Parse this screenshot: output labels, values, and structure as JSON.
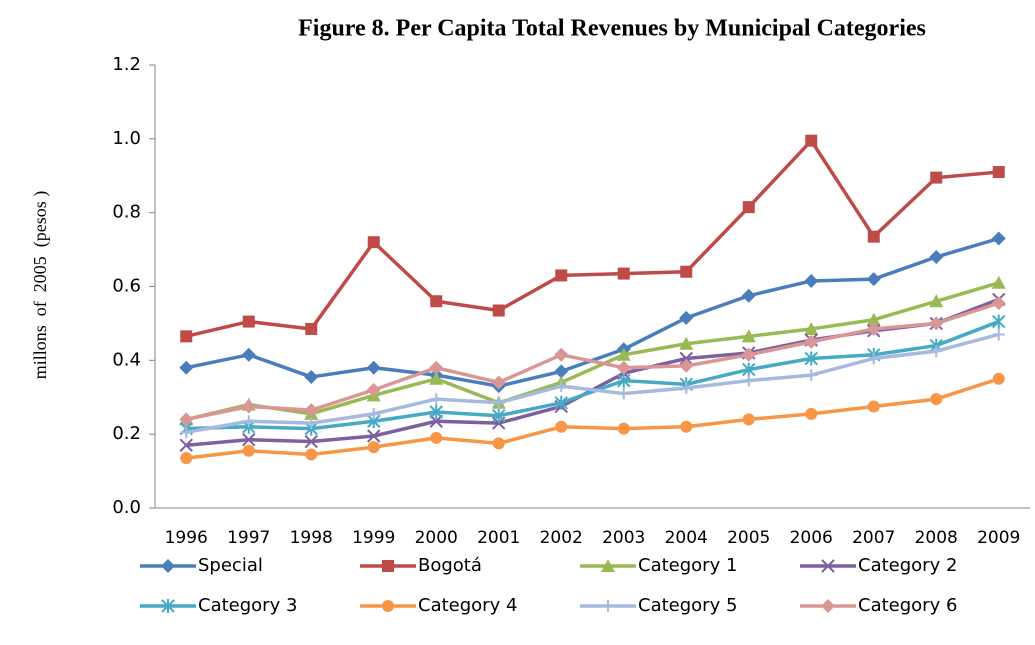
{
  "chart_data": {
    "type": "line",
    "title": "Figure 8. Per Capita Total Revenues by Municipal Categories",
    "y_label": "millons  of  2005  (pesos )",
    "categories": [
      "1996",
      "1997",
      "1998",
      "1999",
      "2000",
      "2001",
      "2002",
      "2003",
      "2004",
      "2005",
      "2006",
      "2007",
      "2008",
      "2009"
    ],
    "ylim": [
      0,
      1.2
    ],
    "yticks": [
      {
        "value": 0,
        "label": "0.0"
      },
      0.2,
      0.4,
      0.6,
      0.8,
      {
        "value": 1,
        "label": "1.0"
      },
      1.2
    ],
    "legend": "bottom",
    "series": [
      {
        "name": "Special",
        "color": "#4a7ebb",
        "marker": "diamond",
        "values": [
          0.38,
          0.415,
          0.355,
          0.38,
          0.36,
          0.33,
          0.37,
          0.43,
          0.515,
          0.575,
          0.615,
          0.62,
          0.68,
          0.73
        ]
      },
      {
        "name": "Bogotá",
        "color": "#be4b48",
        "marker": "square",
        "values": [
          0.465,
          0.505,
          0.485,
          0.72,
          0.56,
          0.535,
          0.63,
          0.635,
          0.64,
          0.815,
          0.995,
          0.735,
          0.895,
          0.91
        ]
      },
      {
        "name": "Category 1",
        "color": "#98b954",
        "marker": "triangle",
        "values": [
          0.24,
          0.28,
          0.255,
          0.305,
          0.35,
          0.285,
          0.34,
          0.415,
          0.445,
          0.465,
          0.485,
          0.51,
          0.56,
          0.61
        ]
      },
      {
        "name": "Category 2",
        "color": "#7d60a0",
        "marker": "x",
        "values": [
          0.17,
          0.185,
          0.18,
          0.195,
          0.235,
          0.23,
          0.275,
          0.365,
          0.405,
          0.42,
          0.455,
          0.48,
          0.5,
          0.565
        ]
      },
      {
        "name": "Category 3",
        "color": "#46aac5",
        "marker": "asterisk",
        "values": [
          0.215,
          0.22,
          0.215,
          0.235,
          0.26,
          0.25,
          0.285,
          0.345,
          0.335,
          0.375,
          0.405,
          0.415,
          0.44,
          0.505
        ]
      },
      {
        "name": "Category 4",
        "color": "#f79646",
        "marker": "circle",
        "values": [
          0.135,
          0.155,
          0.145,
          0.165,
          0.19,
          0.175,
          0.22,
          0.215,
          0.22,
          0.24,
          0.255,
          0.275,
          0.295,
          0.35
        ]
      },
      {
        "name": "Category 5",
        "color": "#a6b9e0",
        "marker": "plus",
        "values": [
          0.205,
          0.235,
          0.23,
          0.255,
          0.295,
          0.285,
          0.33,
          0.31,
          0.325,
          0.345,
          0.36,
          0.405,
          0.425,
          0.47
        ]
      },
      {
        "name": "Category 6",
        "color": "#d99694",
        "marker": "diamond",
        "values": [
          0.24,
          0.275,
          0.265,
          0.32,
          0.38,
          0.34,
          0.415,
          0.38,
          0.385,
          0.415,
          0.45,
          0.485,
          0.5,
          0.555
        ]
      }
    ]
  }
}
